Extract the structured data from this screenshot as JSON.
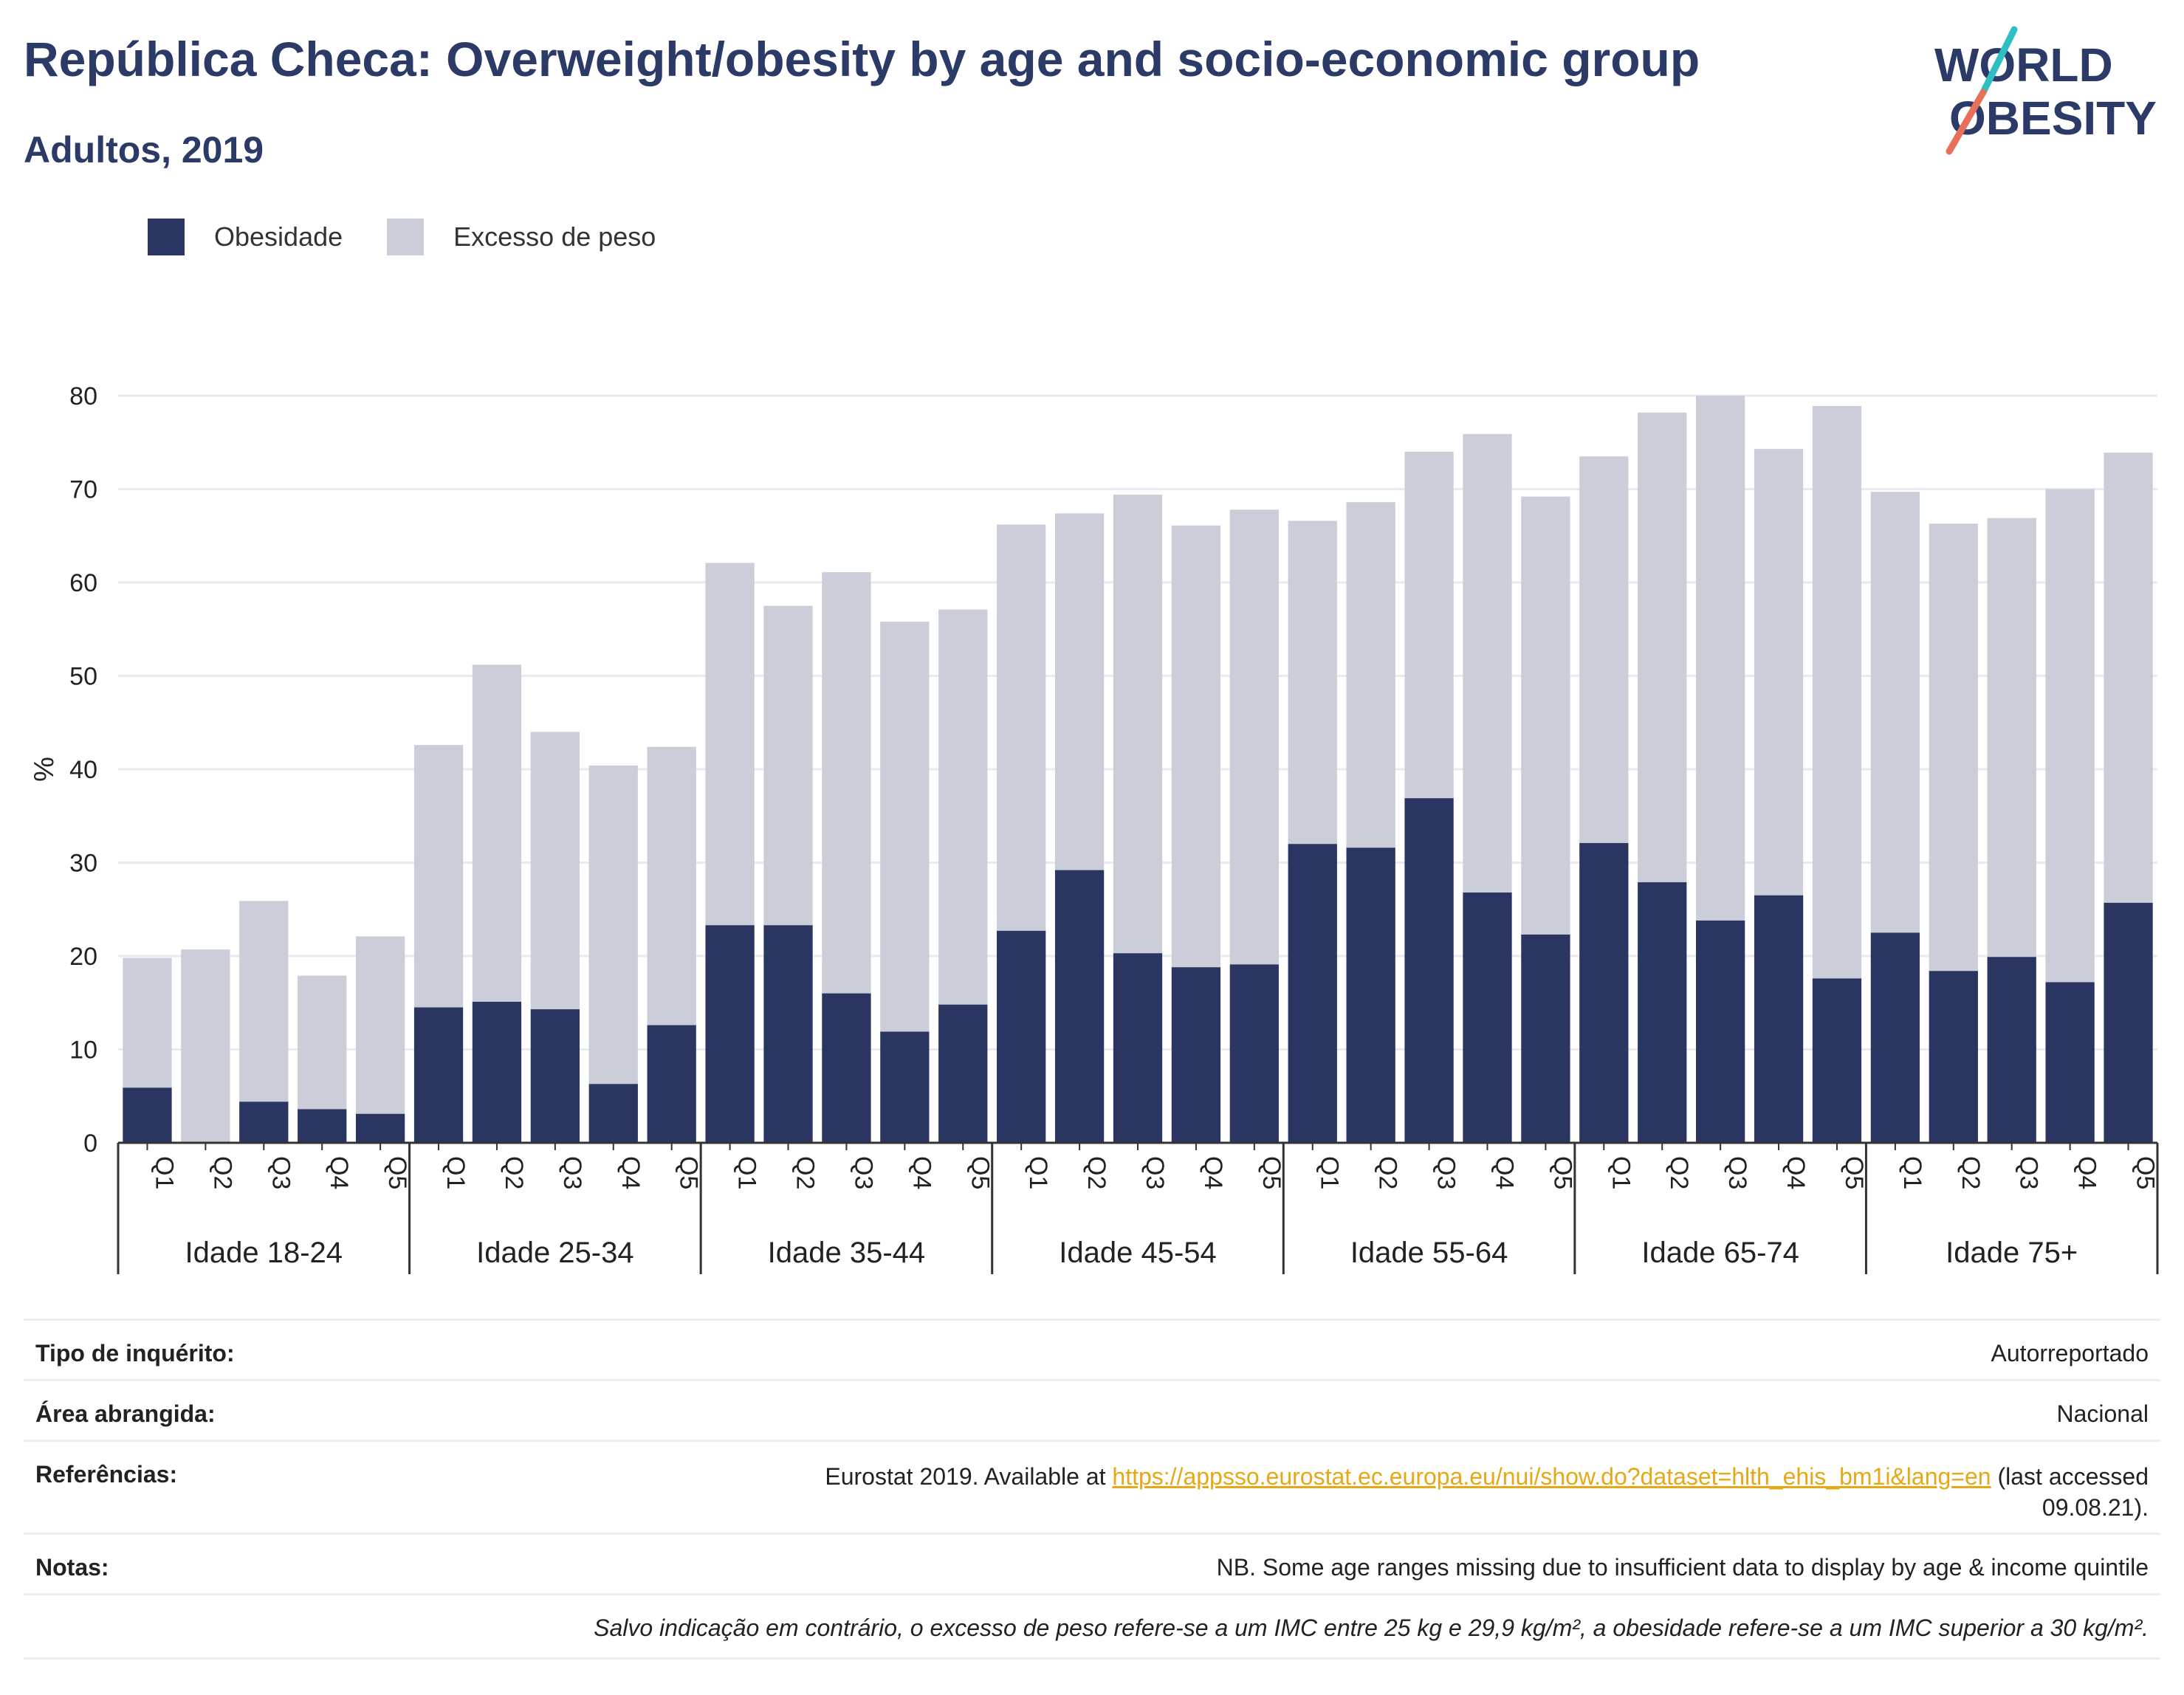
{
  "header": {
    "title": "República Checa: Overweight/obesity by age and socio-economic group",
    "subtitle": "Adultos, 2019"
  },
  "logo": {
    "line1": "WORLD",
    "line2": "OBESITY",
    "accent_colors": [
      "#2fbfc3",
      "#e8705a"
    ]
  },
  "colors": {
    "obesity": "#2b3562",
    "overweight": "#cbcdd8",
    "brand": "#2b3a67"
  },
  "chart_data": {
    "type": "bar",
    "stacked": true,
    "ylabel": "%",
    "ylim": [
      0,
      80
    ],
    "yticks": [
      0,
      10,
      20,
      30,
      40,
      50,
      60,
      70,
      80
    ],
    "grid": true,
    "legend_position": "top-left",
    "groups": [
      "Idade 18-24",
      "Idade 25-34",
      "Idade 35-44",
      "Idade 45-54",
      "Idade 55-64",
      "Idade 65-74",
      "Idade 75+"
    ],
    "quintiles": [
      "Q1",
      "Q2",
      "Q3",
      "Q4",
      "Q5"
    ],
    "series": [
      {
        "name": "Obesidade",
        "color": "#2b3562",
        "values": [
          5.9,
          0,
          4.4,
          3.6,
          3.1,
          14.5,
          15.1,
          14.3,
          6.3,
          12.6,
          23.3,
          23.3,
          16.0,
          11.9,
          14.8,
          22.7,
          29.2,
          20.3,
          18.8,
          19.1,
          32.0,
          31.6,
          36.9,
          26.8,
          22.3,
          32.1,
          27.9,
          23.8,
          26.5,
          17.6,
          22.5,
          18.4,
          19.9,
          17.2,
          25.7
        ]
      },
      {
        "name": "Excesso de peso",
        "color": "#cbcdd8",
        "values": [
          13.9,
          20.7,
          21.5,
          14.3,
          19.0,
          28.1,
          36.1,
          29.7,
          34.1,
          29.8,
          38.8,
          34.2,
          45.1,
          43.9,
          42.3,
          43.5,
          38.2,
          49.1,
          47.3,
          48.7,
          34.6,
          37.0,
          37.1,
          49.1,
          46.9,
          41.4,
          50.3,
          56.2,
          47.8,
          61.3,
          47.2,
          47.9,
          47.0,
          52.8,
          48.2
        ]
      }
    ]
  },
  "info": {
    "rows": [
      {
        "label": "Tipo de inquérito:",
        "value": "Autorreportado"
      },
      {
        "label": "Área abrangida:",
        "value": "Nacional"
      },
      {
        "label": "Referências:",
        "value_prefix": "Eurostat 2019. Available at ",
        "link": "https://appsso.eurostat.ec.europa.eu/nui/show.do?dataset=hlth_ehis_bm1i&lang=en",
        "value_suffix": " (last accessed",
        "value_line2": "09.08.21)."
      },
      {
        "label": "Notas:",
        "value": "NB. Some age ranges missing due to insufficient data to display by age & income quintile"
      }
    ],
    "footnote": "Salvo indicação em contrário, o excesso de peso refere-se a um IMC entre 25 kg e 29,9 kg/m², a obesidade refere-se a um IMC superior a 30 kg/m²."
  }
}
